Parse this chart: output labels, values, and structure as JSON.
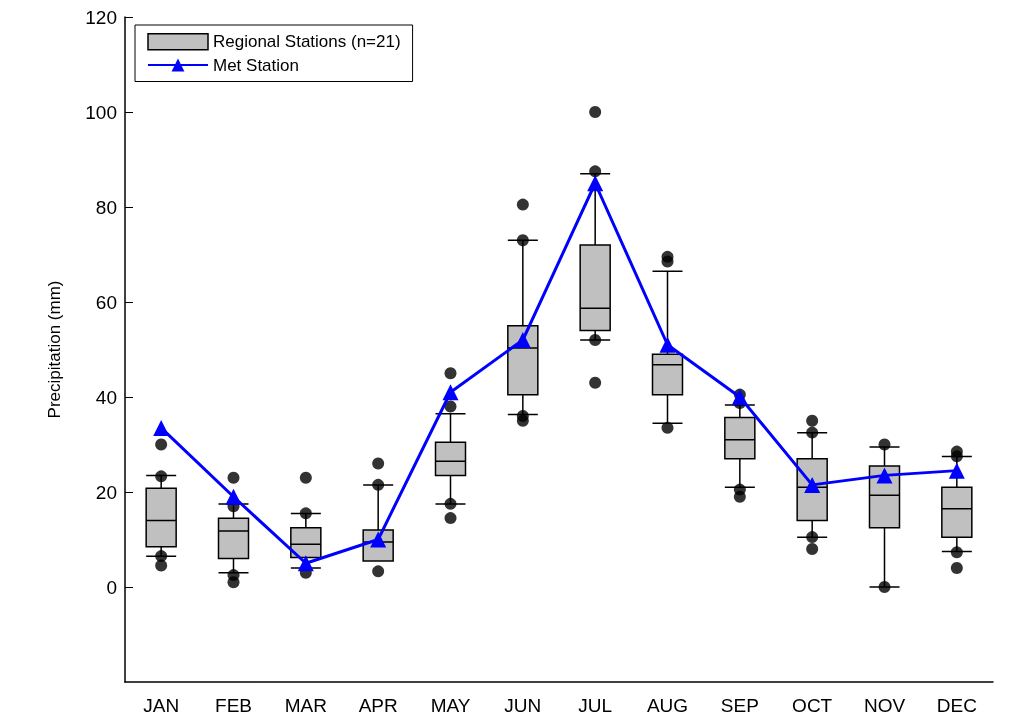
{
  "chart_data": {
    "type": "box",
    "ylabel": "Precipitation (mm)",
    "categories": [
      "JAN",
      "FEB",
      "MAR",
      "APR",
      "MAY",
      "JUN",
      "JUL",
      "AUG",
      "SEP",
      "OCT",
      "NOV",
      "DEC"
    ],
    "ylim": [
      -20,
      120
    ],
    "yticks": [
      0,
      20,
      40,
      60,
      80,
      100,
      120
    ],
    "grid": false,
    "legend": "top left",
    "series": [
      {
        "name": "Regional Stations (n=21)",
        "color": "#c0c0c0",
        "boxes": [
          {
            "low": 6.5,
            "q1": 8.5,
            "median": 14,
            "q3": 20.8,
            "high": 23.5,
            "outliers": [
              30,
              23.3,
              6.5,
              4.5
            ]
          },
          {
            "low": 3,
            "q1": 6,
            "median": 11.8,
            "q3": 14.5,
            "high": 17.5,
            "outliers": [
              23,
              17,
              2.5,
              1
            ]
          },
          {
            "low": 4,
            "q1": 6.2,
            "median": 9,
            "q3": 12.5,
            "high": 15.5,
            "outliers": [
              23,
              15.5,
              3
            ]
          },
          {
            "low": 5.5,
            "q1": 5.5,
            "median": 9.5,
            "q3": 12,
            "high": 21.5,
            "outliers": [
              26,
              21.5,
              3.3
            ]
          },
          {
            "low": 17.5,
            "q1": 23.5,
            "median": 26.5,
            "q3": 30.5,
            "high": 36.5,
            "outliers": [
              45,
              38,
              17.5,
              14.5
            ]
          },
          {
            "low": 36.3,
            "q1": 40.5,
            "median": 50.3,
            "q3": 55,
            "high": 73,
            "outliers": [
              80.5,
              73,
              36,
              35
            ]
          },
          {
            "low": 52,
            "q1": 54,
            "median": 58.7,
            "q3": 72,
            "high": 87,
            "outliers": [
              100,
              87.5,
              52,
              43
            ]
          },
          {
            "low": 34.5,
            "q1": 40.5,
            "median": 46.8,
            "q3": 49,
            "high": 66.5,
            "outliers": [
              69.5,
              68.5,
              33.5
            ]
          },
          {
            "low": 21,
            "q1": 27,
            "median": 31,
            "q3": 35.7,
            "high": 38.3,
            "outliers": [
              40.5,
              38.7,
              20.5,
              19
            ]
          },
          {
            "low": 10.5,
            "q1": 14,
            "median": 21,
            "q3": 27,
            "high": 32.5,
            "outliers": [
              35,
              32.5,
              10.5,
              8
            ]
          },
          {
            "low": 0,
            "q1": 12.5,
            "median": 19.3,
            "q3": 25.5,
            "high": 29.5,
            "outliers": [
              30,
              0
            ]
          },
          {
            "low": 7.5,
            "q1": 10.5,
            "median": 16.5,
            "q3": 21,
            "high": 27.5,
            "outliers": [
              28.5,
              27.5,
              7.3,
              4
            ]
          }
        ]
      },
      {
        "type": "line",
        "name": "Met Station",
        "color": "#0000ff",
        "marker": "triangle",
        "line_style": "solid",
        "values": [
          33.5,
          19,
          5,
          10,
          41,
          52,
          85,
          51,
          40,
          21.5,
          23.5,
          24.5
        ]
      }
    ]
  }
}
